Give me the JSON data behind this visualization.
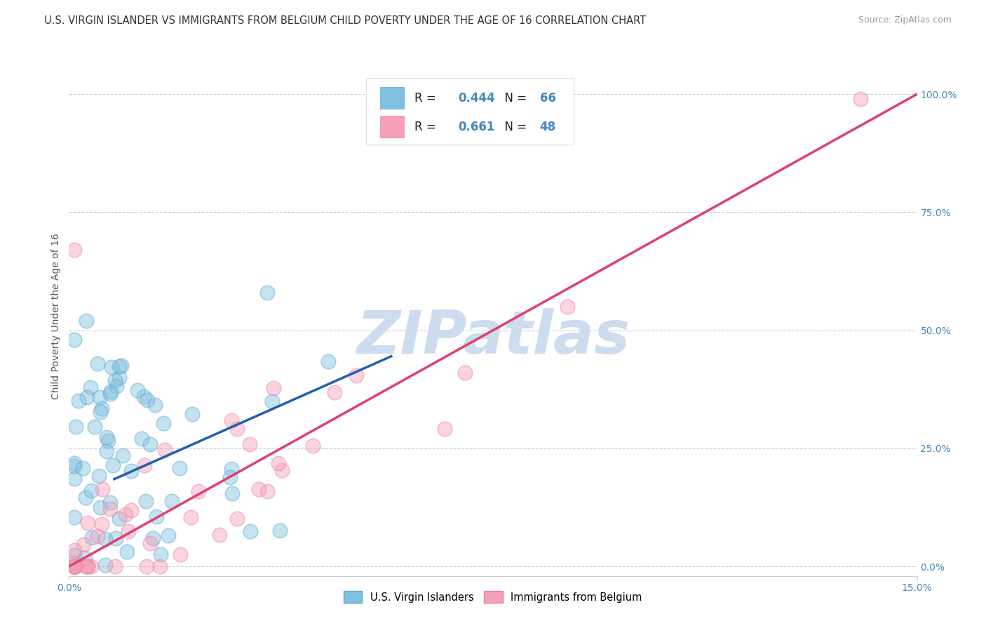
{
  "title": "U.S. VIRGIN ISLANDER VS IMMIGRANTS FROM BELGIUM CHILD POVERTY UNDER THE AGE OF 16 CORRELATION CHART",
  "source": "Source: ZipAtlas.com",
  "ylabel": "Child Poverty Under the Age of 16",
  "xlim": [
    0.0,
    0.15
  ],
  "ylim": [
    -0.02,
    1.08
  ],
  "x_tick_labels": [
    "0.0%",
    "15.0%"
  ],
  "x_tick_positions": [
    0.0,
    0.15
  ],
  "y_tick_labels": [
    "0.0%",
    "25.0%",
    "50.0%",
    "75.0%",
    "100.0%"
  ],
  "y_tick_positions": [
    0.0,
    0.25,
    0.5,
    0.75,
    1.0
  ],
  "blue_R": 0.444,
  "blue_N": 66,
  "pink_R": 0.661,
  "pink_N": 48,
  "blue_color": "#7fbfdf",
  "pink_color": "#f4a0b8",
  "blue_edge_color": "#5aaad0",
  "pink_edge_color": "#ef80a0",
  "blue_line_color": "#2060b0",
  "pink_line_color": "#e04070",
  "ref_line_color": "#aabbdd",
  "watermark": "ZIPatlas",
  "watermark_color": "#cddcee",
  "legend_blue_label": "U.S. Virgin Islanders",
  "legend_pink_label": "Immigrants from Belgium",
  "background_color": "#ffffff",
  "grid_color": "#cccccc",
  "title_fontsize": 10.5,
  "source_fontsize": 9,
  "axis_label_fontsize": 10,
  "tick_fontsize": 10,
  "tick_color": "#4488bb",
  "seed": 7,
  "blue_line_x0": 0.008,
  "blue_line_x1": 0.057,
  "blue_line_y0": 0.185,
  "blue_line_y1": 0.445,
  "pink_line_x0": 0.0,
  "pink_line_x1": 0.15,
  "pink_line_y0": 0.0,
  "pink_line_y1": 1.0
}
